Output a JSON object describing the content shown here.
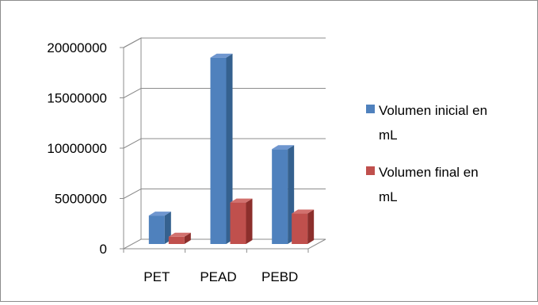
{
  "chart_data": {
    "type": "bar",
    "categories": [
      "PET",
      "PEAD",
      "PEBD"
    ],
    "series": [
      {
        "name": "Volumen inicial en mL",
        "values": [
          3300000,
          19000000,
          9900000
        ]
      },
      {
        "name": "Volumen final en mL",
        "values": [
          1200000,
          4600000,
          3500000
        ]
      }
    ],
    "ylim": [
      0,
      20000000
    ],
    "yticks": [
      0,
      5000000,
      10000000,
      15000000,
      20000000
    ],
    "ytick_labels": [
      "0",
      "5000000",
      "10000000",
      "15000000",
      "20000000"
    ],
    "grid": true,
    "legend_position": "right",
    "legend_lines": [
      [
        "Volumen inicial en",
        "mL"
      ],
      [
        "Volumen final en",
        "mL"
      ]
    ],
    "colors": {
      "series": [
        "#4f81bd",
        "#c0504d"
      ],
      "series_side": [
        "#35618f",
        "#8c2f2c"
      ],
      "series_top": [
        "#6f96cf",
        "#d2716e"
      ],
      "grid": "#8c8c8c"
    },
    "style": "3d-clustered-column"
  }
}
